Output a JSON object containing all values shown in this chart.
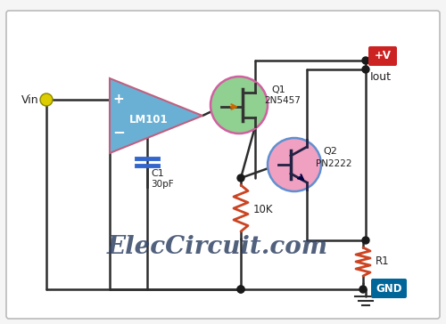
{
  "bg_color": "#f5f5f5",
  "line_color": "#2d2d2d",
  "title": "ElecCircuit.com",
  "vin_label": "Vin",
  "iout_label": "Iout",
  "gnd_label": "GND",
  "vplus_label": "+V",
  "opamp_label": "LM101",
  "q1_label1": "Q1",
  "q1_label2": "2N5457",
  "q2_label1": "Q2",
  "q2_label2": "PN2222",
  "c1_label1": "C1",
  "c1_label2": "30pF",
  "r10k_label": "10K",
  "r1_label": "R1",
  "wire_color": "#2d2d2d",
  "opamp_fill": "#6ab0d4",
  "opamp_stroke": "#c06080",
  "q1_fill": "#90d090",
  "q1_circle_color": "#d060a0",
  "q2_fill": "#f0a0c0",
  "q2_circle_color": "#6090d0",
  "resistor_color": "#cc4422",
  "cap_color": "#3366cc",
  "vin_dot_color": "#ddcc00",
  "vplus_fill": "#cc2222",
  "gnd_fill": "#006699",
  "node_color": "#1a1a1a"
}
